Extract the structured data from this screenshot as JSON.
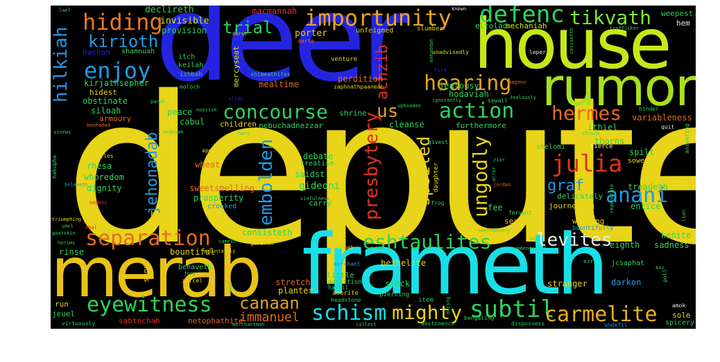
{
  "palette": {
    "background": "#000000",
    "yellow": "#e8d418",
    "lime": "#c6e817",
    "cyan": "#19dfe6",
    "blue": "#2424e0",
    "sky": "#1e9ae6",
    "green": "#2ed35a",
    "orange": "#e66a22",
    "red": "#e2321e",
    "gold": "#e8b01c"
  },
  "words": [
    {
      "text": "depute",
      "color": "#e8d418"
    },
    {
      "text": "deer",
      "color": "#2424e0"
    },
    {
      "text": "house",
      "color": "#c6e817"
    },
    {
      "text": "frameth",
      "color": "#19dfe6"
    },
    {
      "text": "merab",
      "color": "#e8c218"
    },
    {
      "text": "rumor",
      "color": "#a8e01c"
    },
    {
      "text": "importunity",
      "color": "#e8a41c"
    },
    {
      "text": "defenc",
      "color": "#2ed35a"
    },
    {
      "text": "tikvath",
      "color": "#7ee830"
    },
    {
      "text": "hiding",
      "color": "#e67a22"
    },
    {
      "text": "kirioth",
      "color": "#1e9ae6"
    },
    {
      "text": "enjoy",
      "color": "#1e9ae6"
    },
    {
      "text": "hilkiah",
      "color": "#1e9ae6"
    },
    {
      "text": "trial",
      "color": "#2ed35a"
    },
    {
      "text": "achzib",
      "color": "#e2321e"
    },
    {
      "text": "hearing",
      "color": "#e6a21c"
    },
    {
      "text": "concourse",
      "color": "#2ed35a"
    },
    {
      "text": "us",
      "color": "#e6a21c"
    },
    {
      "text": "action",
      "color": "#2ed35a"
    },
    {
      "text": "hermes",
      "color": "#e66a22"
    },
    {
      "text": "julia",
      "color": "#e2321e"
    },
    {
      "text": "anani",
      "color": "#1e9ae6"
    },
    {
      "text": "graf",
      "color": "#1e9ae6"
    },
    {
      "text": "ungodly",
      "color": "#e8d418"
    },
    {
      "text": "spoiled",
      "color": "#e8d418"
    },
    {
      "text": "presbytery",
      "color": "#e2321e"
    },
    {
      "text": "embolden",
      "color": "#1e9ae6"
    },
    {
      "text": "jehonadab",
      "color": "#1e9ae6"
    },
    {
      "text": "separation",
      "color": "#e66a22"
    },
    {
      "text": "eshtaulites",
      "color": "#2ed35a"
    },
    {
      "text": "levites",
      "color": "#e8e8e8"
    },
    {
      "text": "eyewitness",
      "color": "#2ed35a"
    },
    {
      "text": "canaan",
      "color": "#e6a21c"
    },
    {
      "text": "schism",
      "color": "#19dfe6"
    },
    {
      "text": "mighty",
      "color": "#e8d418"
    },
    {
      "text": "subtil",
      "color": "#2ed35a"
    },
    {
      "text": "carmelite",
      "color": "#e8b01c"
    },
    {
      "text": "immanuel",
      "color": "#e66a22"
    },
    {
      "text": "declireth",
      "color": "#2ed35a"
    },
    {
      "text": "invisible",
      "color": "#c6e817"
    },
    {
      "text": "provision",
      "color": "#2ed35a"
    },
    {
      "text": "macmannah",
      "color": "#e2321e"
    },
    {
      "text": "porter",
      "color": "#e8d418"
    },
    {
      "text": "unfeigned",
      "color": "#e8d418"
    },
    {
      "text": "slumber",
      "color": "#e8d418"
    },
    {
      "text": "eltolad",
      "color": "#2ed35a"
    },
    {
      "text": "mechaniah",
      "color": "#c6e817"
    },
    {
      "text": "weepest",
      "color": "#2ed35a"
    },
    {
      "text": "hem",
      "color": "#e8e8e8"
    },
    {
      "text": "nachon",
      "color": "#2424e0"
    },
    {
      "text": "shamnuah",
      "color": "#2ed35a"
    },
    {
      "text": "itch",
      "color": "#2ed35a"
    },
    {
      "text": "keilah",
      "color": "#2ed35a"
    },
    {
      "text": "ishbah",
      "color": "#2ed35a"
    },
    {
      "text": "moloch",
      "color": "#2ed35a"
    },
    {
      "text": "mercyseat",
      "color": "#c6e817"
    },
    {
      "text": "shimeathites",
      "color": "#2ed35a"
    },
    {
      "text": "venture",
      "color": "#e8d418"
    },
    {
      "text": "perdition",
      "color": "#e66a22"
    },
    {
      "text": "zaphnathpaaneah",
      "color": "#e8d418"
    },
    {
      "text": "mealtime",
      "color": "#e66a22"
    },
    {
      "text": "unadvisedly",
      "color": "#c6e817"
    },
    {
      "text": "jealousy",
      "color": "#2ed35a"
    },
    {
      "text": "hodaviah",
      "color": "#2ed35a"
    },
    {
      "text": "kirjathsepher",
      "color": "#2ed35a"
    },
    {
      "text": "hidest",
      "color": "#e8d418"
    },
    {
      "text": "obstinate",
      "color": "#2ed35a"
    },
    {
      "text": "siloah",
      "color": "#2ed35a"
    },
    {
      "text": "armoury",
      "color": "#e66a22"
    },
    {
      "text": "peace",
      "color": "#2ed35a"
    },
    {
      "text": "cabul",
      "color": "#2ed35a"
    },
    {
      "text": "children",
      "color": "#e8d418"
    },
    {
      "text": "shrine",
      "color": "#2ed35a"
    },
    {
      "text": "nebuchadnezzar",
      "color": "#2ed35a"
    },
    {
      "text": "cleanse",
      "color": "#2ed35a"
    },
    {
      "text": "furthermore",
      "color": "#2ed35a"
    },
    {
      "text": "variableness",
      "color": "#e66a22"
    },
    {
      "text": "ithiel",
      "color": "#2ed35a"
    },
    {
      "text": "thorns",
      "color": "#2ed35a"
    },
    {
      "text": "shelomi",
      "color": "#2ed35a"
    },
    {
      "text": "spilt",
      "color": "#2ed35a"
    },
    {
      "text": "sowest",
      "color": "#e8d418"
    },
    {
      "text": "rhesa",
      "color": "#2ed35a"
    },
    {
      "text": "whoredom",
      "color": "#2ed35a"
    },
    {
      "text": "dignity",
      "color": "#2ed35a"
    },
    {
      "text": "wheat",
      "color": "#e66a22"
    },
    {
      "text": "sweetsmelling",
      "color": "#e66a22"
    },
    {
      "text": "prosperity",
      "color": "#2ed35a"
    },
    {
      "text": "crooked",
      "color": "#1e9ae6"
    },
    {
      "text": "hath",
      "color": "#e8d418"
    },
    {
      "text": "debate",
      "color": "#2ed35a"
    },
    {
      "text": "treatise",
      "color": "#2ed35a"
    },
    {
      "text": "saidst",
      "color": "#2ed35a"
    },
    {
      "text": "gideoni",
      "color": "#2ed35a"
    },
    {
      "text": "carry",
      "color": "#2ed35a"
    },
    {
      "text": "fee",
      "color": "#2ed35a"
    },
    {
      "text": "journeying",
      "color": "#e8d418"
    },
    {
      "text": "delicately",
      "color": "#2ed35a"
    },
    {
      "text": "treadeth",
      "color": "#2ed35a"
    },
    {
      "text": "entice",
      "color": "#2ed35a"
    },
    {
      "text": "sear",
      "color": "#e8d418"
    },
    {
      "text": "whoring",
      "color": "#e8d418"
    },
    {
      "text": "bountifully",
      "color": "#1e9ae6"
    },
    {
      "text": "kenite",
      "color": "#2ed35a"
    },
    {
      "text": "sadness",
      "color": "#2ed35a"
    },
    {
      "text": "eighth",
      "color": "#2ed35a"
    },
    {
      "text": "consisteth",
      "color": "#2ed35a"
    },
    {
      "text": "bountiful",
      "color": "#e8d418"
    },
    {
      "text": "rinse",
      "color": "#2ed35a"
    },
    {
      "text": "sand",
      "color": "#e8d418"
    },
    {
      "text": "behaveth",
      "color": "#2ed35a"
    },
    {
      "text": "bethelite",
      "color": "#e8d418"
    },
    {
      "text": "stretch",
      "color": "#e66a22"
    },
    {
      "text": "planter",
      "color": "#e8d418"
    },
    {
      "text": "little",
      "color": "#2ed35a"
    },
    {
      "text": "partition",
      "color": "#2ed35a"
    },
    {
      "text": "hattil",
      "color": "#2ed35a"
    },
    {
      "text": "amorite",
      "color": "#e8d418"
    },
    {
      "text": "headstone",
      "color": "#2ed35a"
    },
    {
      "text": "stock",
      "color": "#2ed35a"
    },
    {
      "text": "piercing",
      "color": "#2ed35a"
    },
    {
      "text": "item",
      "color": "#2ed35a"
    },
    {
      "text": "stranger",
      "color": "#e8d418"
    },
    {
      "text": "darkon",
      "color": "#1e9ae6"
    },
    {
      "text": "sole",
      "color": "#e8d418"
    },
    {
      "text": "spicery",
      "color": "#2ed35a"
    },
    {
      "text": "jeuel",
      "color": "#2ed35a"
    },
    {
      "text": "run",
      "color": "#e8d418"
    },
    {
      "text": "sabtechah",
      "color": "#e2321e"
    },
    {
      "text": "netophathite",
      "color": "#e66a22"
    },
    {
      "text": "virtuously",
      "color": "#2ed35a"
    },
    {
      "text": "abstinence",
      "color": "#2ed35a"
    },
    {
      "text": "dispossess",
      "color": "#2ed35a"
    },
    {
      "text": "bengaling",
      "color": "#2ed35a"
    },
    {
      "text": "merchantman",
      "color": "#2ed35a"
    },
    {
      "text": "callest",
      "color": "#2ed35a"
    },
    {
      "text": "undefil",
      "color": "#1e9ae6"
    },
    {
      "text": "amok",
      "color": "#e8e8e8"
    },
    {
      "text": "poll",
      "color": "#2ed35a"
    },
    {
      "text": "koz",
      "color": "#2ed35a"
    },
    {
      "text": "ezri",
      "color": "#2ed35a"
    },
    {
      "text": "jcsaphat",
      "color": "#2ed35a"
    },
    {
      "text": "merchant",
      "color": "#1e9ae6"
    },
    {
      "text": "rachab",
      "color": "#e8d418"
    },
    {
      "text": "commendation",
      "color": "#2ed35a"
    },
    {
      "text": "confederacy",
      "color": "#2ed35a"
    },
    {
      "text": "fervent",
      "color": "#2ed35a"
    },
    {
      "text": "frog",
      "color": "#2ed35a"
    },
    {
      "text": "jordan",
      "color": "#e66a22"
    },
    {
      "text": "daughter",
      "color": "#e8d418"
    },
    {
      "text": "givest",
      "color": "#2ed35a"
    },
    {
      "text": "zior",
      "color": "#2ed35a"
    },
    {
      "text": "fierce",
      "color": "#e8e8e8"
    },
    {
      "text": "quit",
      "color": "#e8e8e8"
    },
    {
      "text": "hinder",
      "color": "#2ed35a"
    },
    {
      "text": "answering",
      "color": "#2ed35a"
    },
    {
      "text": "itrins",
      "color": "#2ed35a"
    },
    {
      "text": "sewall",
      "color": "#2ed35a"
    },
    {
      "text": "zealously",
      "color": "#2ed35a"
    },
    {
      "text": "uphoaden",
      "color": "#2ed35a"
    },
    {
      "text": "ignorantly",
      "color": "#2ed35a"
    },
    {
      "text": "fork",
      "color": "#2424e0"
    },
    {
      "text": "enhaddah",
      "color": "#2ed35a"
    },
    {
      "text": "leper",
      "color": "#e8e8e8"
    },
    {
      "text": "cevisefth",
      "color": "#2ed35a"
    },
    {
      "text": "trafficker",
      "color": "#2ed35a"
    },
    {
      "text": "known",
      "color": "#e8e8e8"
    },
    {
      "text": "lael",
      "color": "#2ed35a"
    },
    {
      "text": "nurse",
      "color": "#e8d418"
    },
    {
      "text": "derte",
      "color": "#e66a22"
    },
    {
      "text": "parah",
      "color": "#2ed35a"
    },
    {
      "text": "nourish",
      "color": "#2ed35a"
    },
    {
      "text": "slide",
      "color": "#2424e0"
    },
    {
      "text": "hodevah",
      "color": "#2ed35a"
    },
    {
      "text": "hori",
      "color": "#2ed35a"
    },
    {
      "text": "benhadad",
      "color": "#e66a22"
    },
    {
      "text": "sinews",
      "color": "#2ed35a"
    },
    {
      "text": "hakupha",
      "color": "#2ed35a"
    },
    {
      "text": "gentiles",
      "color": "#e8d418"
    },
    {
      "text": "apple",
      "color": "#e8d418"
    },
    {
      "text": "beleveth",
      "color": "#1e9ae6"
    },
    {
      "text": "nephes",
      "color": "#e2321e"
    },
    {
      "text": "triumphing",
      "color": "#e8d418"
    },
    {
      "text": "ebal",
      "color": "#e2321e"
    },
    {
      "text": "ohel",
      "color": "#2ed35a"
    },
    {
      "text": "goatskin",
      "color": "#2ed35a"
    },
    {
      "text": "horims",
      "color": "#2ed35a"
    },
    {
      "text": "camest",
      "color": "#2ed35a"
    },
    {
      "text": "gershom",
      "color": "#e8d418"
    },
    {
      "text": "voluntarily",
      "color": "#e8d418"
    },
    {
      "text": "jury",
      "color": "#2ed35a"
    },
    {
      "text": "parcel",
      "color": "#e8d418"
    },
    {
      "text": "mod",
      "color": "#2ed35a"
    },
    {
      "text": "mocing",
      "color": "#2ed35a"
    },
    {
      "text": "sinfulness",
      "color": "#2ed35a"
    },
    {
      "text": "arror",
      "color": "#2ed35a"
    },
    {
      "text": "lion",
      "color": "#2ed35a"
    },
    {
      "text": "regenerate",
      "color": "#2ed35a"
    },
    {
      "text": "magenn",
      "color": "#e66a22"
    },
    {
      "text": "nc",
      "color": "#2ed35a"
    }
  ]
}
